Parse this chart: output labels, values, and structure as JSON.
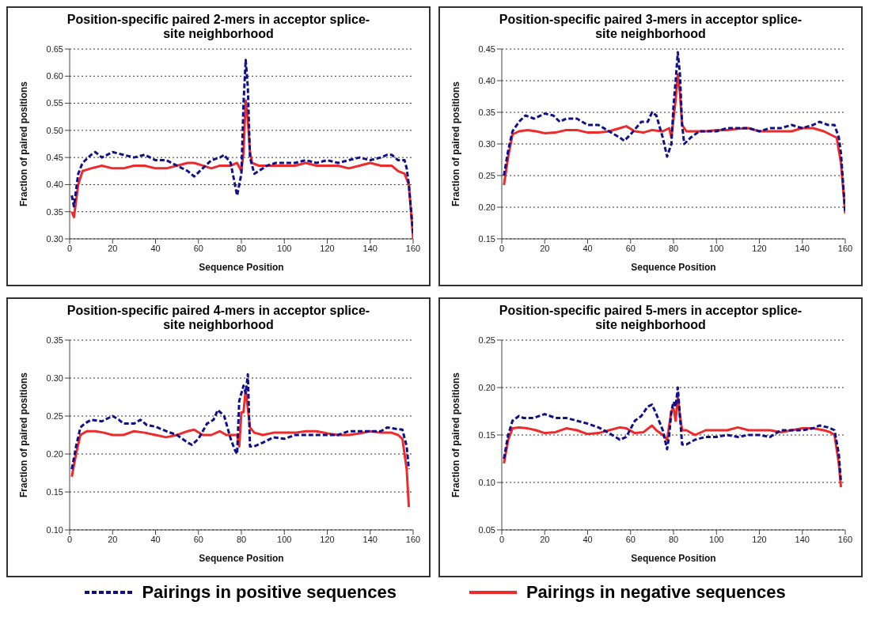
{
  "chart_data": [
    {
      "type": "line",
      "title": "Position-specific paired 2-mers in acceptor splice-site neighborhood",
      "xlabel": "Sequence Position",
      "ylabel": "Fraction of paired positions",
      "xlim": [
        0,
        160
      ],
      "xticks": [
        0,
        20,
        40,
        60,
        80,
        100,
        120,
        140,
        160
      ],
      "ylim": [
        0.3,
        0.65
      ],
      "yticks": [
        {
          "value": 0.3,
          "label": "0.30"
        },
        0.35,
        {
          "value": 0.4,
          "label": "0.40"
        },
        0.45,
        {
          "value": 0.5,
          "label": "0.50"
        },
        0.55,
        {
          "value": 0.6,
          "label": "0.60"
        },
        0.65
      ],
      "grid": "y",
      "legend": "bottom",
      "marker": "none",
      "series": [
        {
          "name": "Pairings in positive sequences",
          "color": "#10108a",
          "line_style": "dashed",
          "x": [
            1,
            2,
            4,
            6,
            10,
            12,
            15,
            20,
            25,
            30,
            35,
            40,
            45,
            50,
            55,
            58,
            62,
            66,
            70,
            72,
            75,
            77,
            78,
            79,
            80,
            81,
            82,
            83,
            84,
            86,
            88,
            92,
            96,
            100,
            105,
            110,
            115,
            120,
            125,
            130,
            135,
            140,
            145,
            148,
            150,
            153,
            156,
            157,
            158,
            160
          ],
          "values": [
            0.38,
            0.36,
            0.42,
            0.44,
            0.455,
            0.46,
            0.45,
            0.46,
            0.455,
            0.45,
            0.455,
            0.445,
            0.445,
            0.435,
            0.425,
            0.415,
            0.43,
            0.445,
            0.45,
            0.455,
            0.44,
            0.4,
            0.38,
            0.4,
            0.42,
            0.55,
            0.63,
            0.58,
            0.45,
            0.42,
            0.425,
            0.435,
            0.44,
            0.44,
            0.44,
            0.445,
            0.44,
            0.445,
            0.44,
            0.445,
            0.45,
            0.445,
            0.45,
            0.455,
            0.455,
            0.445,
            0.445,
            0.43,
            0.4,
            0.31
          ]
        },
        {
          "name": "Pairings in negative sequences",
          "color": "#ee2a2a",
          "line_style": "solid",
          "x": [
            1,
            2,
            4,
            6,
            10,
            15,
            20,
            25,
            30,
            35,
            40,
            45,
            50,
            55,
            58,
            62,
            66,
            70,
            75,
            78,
            80,
            81,
            82,
            83,
            84,
            85,
            88,
            92,
            96,
            100,
            105,
            110,
            115,
            120,
            125,
            130,
            135,
            140,
            145,
            150,
            153,
            156,
            158,
            160
          ],
          "values": [
            0.35,
            0.34,
            0.4,
            0.425,
            0.43,
            0.435,
            0.43,
            0.43,
            0.435,
            0.435,
            0.43,
            0.43,
            0.435,
            0.44,
            0.44,
            0.435,
            0.43,
            0.435,
            0.435,
            0.44,
            0.425,
            0.46,
            0.555,
            0.52,
            0.46,
            0.44,
            0.435,
            0.435,
            0.435,
            0.435,
            0.435,
            0.44,
            0.435,
            0.435,
            0.435,
            0.43,
            0.435,
            0.44,
            0.435,
            0.435,
            0.425,
            0.42,
            0.4,
            0.3
          ]
        }
      ]
    },
    {
      "type": "line",
      "title": "Position-specific paired 3-mers in acceptor splice-site neighborhood",
      "xlabel": "Sequence Position",
      "ylabel": "Fraction of paired positions",
      "xlim": [
        0,
        160
      ],
      "xticks": [
        0,
        20,
        40,
        60,
        80,
        100,
        120,
        140,
        160
      ],
      "ylim": [
        0.15,
        0.45
      ],
      "yticks": [
        0.15,
        {
          "value": 0.2,
          "label": "0.20"
        },
        0.25,
        {
          "value": 0.3,
          "label": "0.30"
        },
        0.35,
        {
          "value": 0.4,
          "label": "0.40"
        },
        0.45
      ],
      "grid": "y",
      "marker": "none",
      "series": [
        {
          "color": "#10108a",
          "line_style": "dashed",
          "x": [
            1,
            3,
            5,
            8,
            11,
            15,
            20,
            24,
            27,
            30,
            35,
            40,
            45,
            50,
            55,
            57,
            60,
            65,
            68,
            70,
            72,
            75,
            77,
            78,
            79,
            80,
            81,
            82,
            83,
            84,
            85,
            88,
            92,
            96,
            100,
            105,
            110,
            115,
            120,
            125,
            130,
            135,
            140,
            145,
            148,
            152,
            155,
            157,
            158,
            160
          ],
          "values": [
            0.25,
            0.29,
            0.32,
            0.335,
            0.345,
            0.34,
            0.348,
            0.345,
            0.335,
            0.34,
            0.34,
            0.33,
            0.33,
            0.32,
            0.31,
            0.305,
            0.315,
            0.335,
            0.335,
            0.35,
            0.345,
            0.31,
            0.28,
            0.29,
            0.3,
            0.36,
            0.4,
            0.445,
            0.41,
            0.33,
            0.3,
            0.31,
            0.32,
            0.32,
            0.32,
            0.325,
            0.325,
            0.325,
            0.32,
            0.325,
            0.325,
            0.33,
            0.325,
            0.33,
            0.335,
            0.33,
            0.33,
            0.31,
            0.285,
            0.19
          ]
        },
        {
          "color": "#ee2a2a",
          "line_style": "solid",
          "x": [
            1,
            3,
            5,
            8,
            12,
            16,
            20,
            25,
            30,
            35,
            40,
            45,
            50,
            55,
            58,
            62,
            66,
            70,
            75,
            78,
            79,
            80,
            81,
            82,
            83,
            84,
            86,
            90,
            95,
            100,
            105,
            110,
            115,
            120,
            125,
            130,
            135,
            140,
            145,
            150,
            153,
            156,
            158,
            160
          ],
          "values": [
            0.235,
            0.28,
            0.315,
            0.32,
            0.322,
            0.32,
            0.317,
            0.318,
            0.322,
            0.322,
            0.318,
            0.318,
            0.32,
            0.325,
            0.328,
            0.32,
            0.318,
            0.322,
            0.32,
            0.325,
            0.31,
            0.34,
            0.37,
            0.41,
            0.38,
            0.33,
            0.32,
            0.32,
            0.32,
            0.322,
            0.322,
            0.324,
            0.325,
            0.32,
            0.32,
            0.32,
            0.32,
            0.325,
            0.325,
            0.32,
            0.315,
            0.31,
            0.27,
            0.19
          ]
        }
      ]
    },
    {
      "type": "line",
      "title": "Position-specific paired 4-mers in acceptor splice-site neighborhood",
      "xlabel": "Sequence Position",
      "ylabel": "Fraction of paired positions",
      "xlim": [
        0,
        160
      ],
      "xticks": [
        0,
        20,
        40,
        60,
        80,
        100,
        120,
        140,
        160
      ],
      "ylim": [
        0.1,
        0.35
      ],
      "yticks": [
        {
          "value": 0.1,
          "label": "0.10"
        },
        0.15,
        {
          "value": 0.2,
          "label": "0.20"
        },
        0.25,
        {
          "value": 0.3,
          "label": "0.30"
        },
        0.35
      ],
      "grid": "y",
      "marker": "none",
      "series": [
        {
          "color": "#10108a",
          "line_style": "dashed",
          "x": [
            1,
            3,
            5,
            7,
            10,
            15,
            20,
            23,
            25,
            30,
            33,
            36,
            40,
            45,
            50,
            55,
            57,
            60,
            64,
            67,
            69,
            72,
            75,
            77,
            78,
            79,
            81,
            82,
            83,
            84,
            86,
            90,
            95,
            100,
            105,
            110,
            115,
            120,
            125,
            130,
            135,
            140,
            145,
            148,
            152,
            155,
            157,
            158
          ],
          "values": [
            0.18,
            0.21,
            0.235,
            0.24,
            0.245,
            0.243,
            0.25,
            0.245,
            0.24,
            0.24,
            0.245,
            0.238,
            0.236,
            0.23,
            0.225,
            0.215,
            0.212,
            0.22,
            0.24,
            0.245,
            0.258,
            0.25,
            0.22,
            0.205,
            0.2,
            0.27,
            0.29,
            0.28,
            0.305,
            0.21,
            0.21,
            0.215,
            0.222,
            0.22,
            0.225,
            0.225,
            0.225,
            0.225,
            0.225,
            0.23,
            0.23,
            0.23,
            0.23,
            0.235,
            0.233,
            0.232,
            0.21,
            0.18
          ]
        },
        {
          "color": "#ee2a2a",
          "line_style": "solid",
          "x": [
            1,
            3,
            5,
            8,
            12,
            16,
            20,
            25,
            30,
            35,
            40,
            45,
            50,
            55,
            58,
            62,
            66,
            70,
            73,
            76,
            78,
            79,
            80,
            81,
            82,
            83,
            84,
            86,
            90,
            95,
            100,
            105,
            110,
            115,
            120,
            125,
            130,
            135,
            140,
            145,
            150,
            153,
            155,
            157,
            158
          ],
          "values": [
            0.17,
            0.2,
            0.225,
            0.23,
            0.23,
            0.228,
            0.225,
            0.225,
            0.23,
            0.228,
            0.225,
            0.222,
            0.225,
            0.23,
            0.232,
            0.225,
            0.225,
            0.23,
            0.225,
            0.225,
            0.225,
            0.21,
            0.255,
            0.255,
            0.285,
            0.26,
            0.235,
            0.228,
            0.225,
            0.228,
            0.228,
            0.228,
            0.23,
            0.23,
            0.227,
            0.225,
            0.225,
            0.227,
            0.23,
            0.228,
            0.228,
            0.225,
            0.22,
            0.18,
            0.13
          ]
        }
      ]
    },
    {
      "type": "line",
      "title": "Position-specific paired 5-mers in acceptor splice-site neighborhood",
      "xlabel": "Sequence Position",
      "ylabel": "Fraction of paired positions",
      "xlim": [
        0,
        160
      ],
      "xticks": [
        0,
        20,
        40,
        60,
        80,
        100,
        120,
        140,
        160
      ],
      "ylim": [
        0.05,
        0.25
      ],
      "yticks": [
        0.05,
        {
          "value": 0.1,
          "label": "0.10"
        },
        0.15,
        {
          "value": 0.2,
          "label": "0.20"
        },
        0.25
      ],
      "grid": "y",
      "marker": "none",
      "series": [
        {
          "color": "#10108a",
          "line_style": "dashed",
          "x": [
            1,
            3,
            5,
            8,
            10,
            15,
            20,
            25,
            30,
            35,
            40,
            45,
            50,
            55,
            58,
            62,
            65,
            68,
            70,
            72,
            75,
            77,
            78,
            79,
            80,
            81,
            82,
            83,
            84,
            86,
            90,
            95,
            100,
            105,
            110,
            115,
            120,
            125,
            130,
            135,
            140,
            145,
            148,
            152,
            155,
            157,
            158
          ],
          "values": [
            0.125,
            0.15,
            0.165,
            0.17,
            0.168,
            0.168,
            0.172,
            0.168,
            0.168,
            0.165,
            0.162,
            0.158,
            0.152,
            0.145,
            0.148,
            0.165,
            0.17,
            0.18,
            0.182,
            0.172,
            0.155,
            0.135,
            0.15,
            0.175,
            0.185,
            0.18,
            0.2,
            0.17,
            0.14,
            0.14,
            0.145,
            0.148,
            0.148,
            0.15,
            0.148,
            0.15,
            0.15,
            0.148,
            0.155,
            0.155,
            0.155,
            0.157,
            0.16,
            0.158,
            0.155,
            0.13,
            0.1
          ]
        },
        {
          "color": "#ee2a2a",
          "line_style": "solid",
          "x": [
            1,
            3,
            5,
            8,
            12,
            16,
            20,
            25,
            30,
            35,
            40,
            45,
            50,
            55,
            58,
            62,
            66,
            70,
            72,
            75,
            77,
            78,
            79,
            80,
            81,
            82,
            83,
            84,
            86,
            90,
            95,
            100,
            105,
            110,
            115,
            120,
            125,
            130,
            135,
            140,
            145,
            150,
            153,
            155,
            157,
            158
          ],
          "values": [
            0.12,
            0.145,
            0.157,
            0.158,
            0.157,
            0.155,
            0.152,
            0.153,
            0.157,
            0.155,
            0.151,
            0.152,
            0.155,
            0.158,
            0.157,
            0.152,
            0.153,
            0.16,
            0.155,
            0.15,
            0.145,
            0.16,
            0.175,
            0.178,
            0.165,
            0.19,
            0.17,
            0.155,
            0.155,
            0.15,
            0.155,
            0.155,
            0.155,
            0.158,
            0.155,
            0.155,
            0.155,
            0.153,
            0.155,
            0.157,
            0.157,
            0.155,
            0.153,
            0.15,
            0.12,
            0.095
          ]
        }
      ]
    }
  ]
}
